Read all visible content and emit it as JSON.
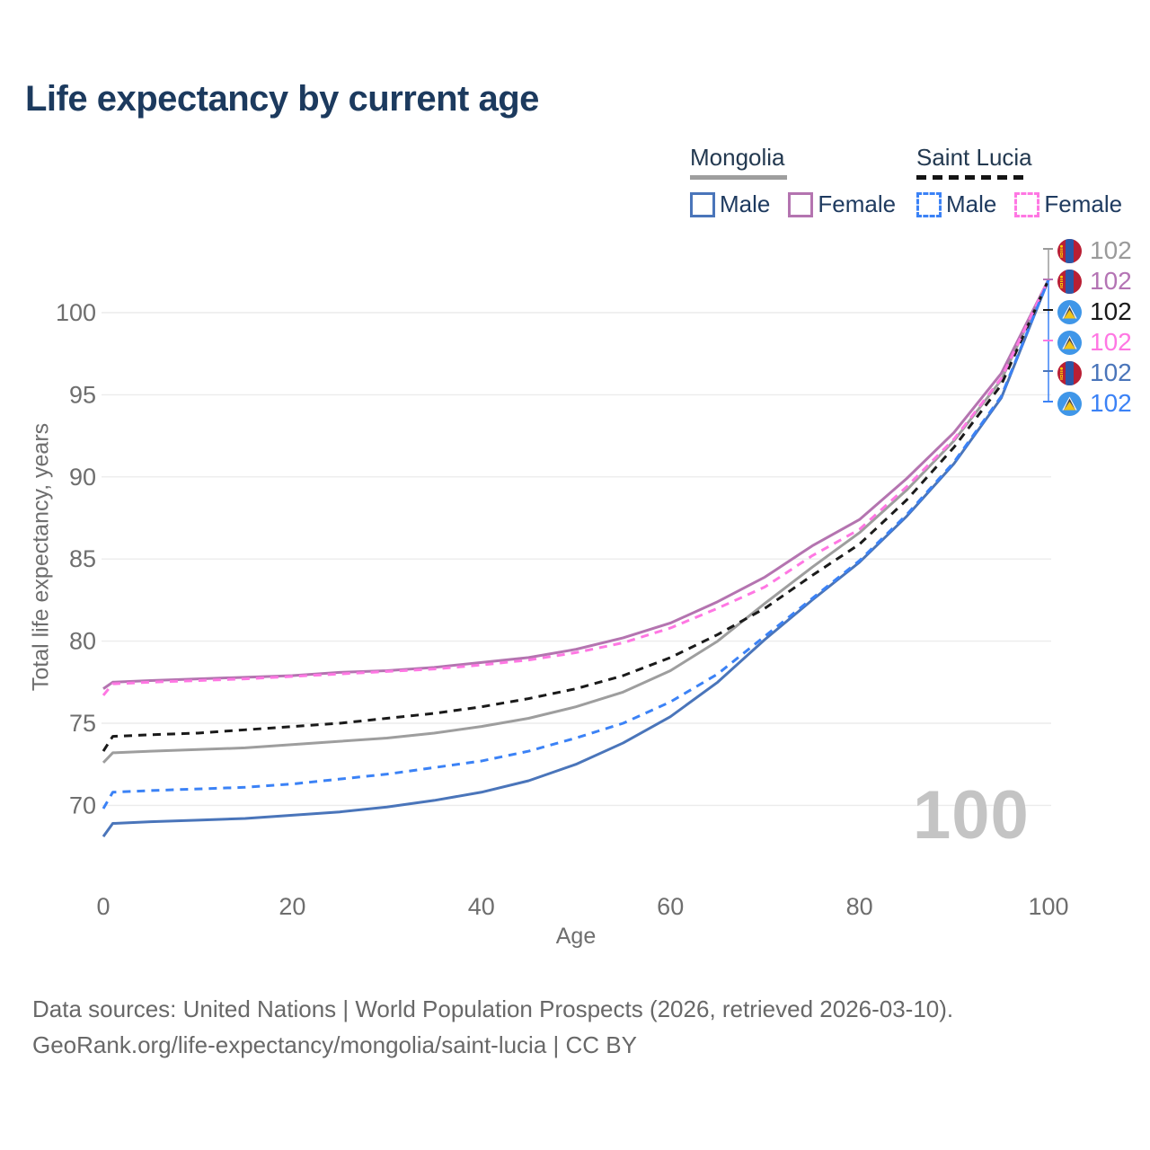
{
  "title": "Life expectancy by current age",
  "legend": {
    "groups": [
      {
        "label": "Mongolia",
        "rule_style": "solid",
        "rule_color": "#9e9e9e",
        "items": [
          {
            "label": "Male",
            "color": "#4a75ba",
            "dash": false
          },
          {
            "label": "Female",
            "color": "#b474b0",
            "dash": false
          }
        ]
      },
      {
        "label": "Saint Lucia",
        "rule_style": "dashed",
        "rule_color": "#141414",
        "items": [
          {
            "label": "Male",
            "color": "#3b82f6",
            "dash": true
          },
          {
            "label": "Female",
            "color": "#ff77e3",
            "dash": true
          }
        ]
      }
    ]
  },
  "chart_data": {
    "type": "line",
    "title": "Life expectancy by current age",
    "xlabel": "Age",
    "ylabel": "Total life expectancy, years",
    "xlim": [
      0,
      100
    ],
    "ylim": [
      66.5,
      103
    ],
    "x_ticks": [
      0,
      20,
      40,
      60,
      80,
      100
    ],
    "y_ticks": [
      70,
      75,
      80,
      85,
      90,
      95,
      100
    ],
    "grid": "horizontal",
    "legend_position": "top-right",
    "x": [
      0,
      1,
      5,
      10,
      15,
      20,
      25,
      30,
      35,
      40,
      45,
      50,
      55,
      60,
      65,
      70,
      75,
      80,
      85,
      90,
      95,
      100
    ],
    "series": [
      {
        "name": "Mongolia — Total",
        "country": "Mongolia",
        "sex": "Total",
        "color": "#9e9e9e",
        "dash": false,
        "values": [
          72.6,
          73.2,
          73.3,
          73.4,
          73.5,
          73.7,
          73.9,
          74.1,
          74.4,
          74.8,
          75.3,
          76.0,
          76.9,
          78.2,
          80.0,
          82.3,
          84.5,
          86.6,
          89.2,
          92.2,
          95.9,
          102.0
        ],
        "end_label": "102"
      },
      {
        "name": "Mongolia — Female",
        "country": "Mongolia",
        "sex": "Female",
        "color": "#b474b0",
        "dash": false,
        "values": [
          77.1,
          77.5,
          77.6,
          77.7,
          77.8,
          77.9,
          78.1,
          78.2,
          78.4,
          78.7,
          79.0,
          79.5,
          80.2,
          81.1,
          82.4,
          83.9,
          85.8,
          87.4,
          89.9,
          92.7,
          96.3,
          102.0
        ],
        "end_label": "102"
      },
      {
        "name": "Mongolia — Male",
        "country": "Mongolia",
        "sex": "Male",
        "color": "#4a75ba",
        "dash": false,
        "values": [
          68.1,
          68.9,
          69.0,
          69.1,
          69.2,
          69.4,
          69.6,
          69.9,
          70.3,
          70.8,
          71.5,
          72.5,
          73.8,
          75.4,
          77.5,
          80.1,
          82.5,
          84.8,
          87.6,
          90.8,
          94.8,
          102.0
        ],
        "end_label": "102"
      },
      {
        "name": "Saint Lucia — Total",
        "country": "Saint Lucia",
        "sex": "Total",
        "color": "#1a1a1a",
        "dash": true,
        "values": [
          73.3,
          74.2,
          74.3,
          74.4,
          74.6,
          74.8,
          75.0,
          75.3,
          75.6,
          76.0,
          76.5,
          77.1,
          77.9,
          79.0,
          80.4,
          82.0,
          84.0,
          85.9,
          88.6,
          91.8,
          95.6,
          102.0
        ],
        "end_label": "102"
      },
      {
        "name": "Saint Lucia — Female",
        "country": "Saint Lucia",
        "sex": "Female",
        "color": "#ff77e3",
        "dash": true,
        "values": [
          76.7,
          77.4,
          77.5,
          77.6,
          77.7,
          77.85,
          78.0,
          78.15,
          78.3,
          78.55,
          78.85,
          79.3,
          79.9,
          80.8,
          82.0,
          83.3,
          85.2,
          86.8,
          89.4,
          92.3,
          96.0,
          102.0
        ],
        "end_label": "102"
      },
      {
        "name": "Saint Lucia — Male",
        "country": "Saint Lucia",
        "sex": "Male",
        "color": "#3b82f6",
        "dash": true,
        "values": [
          69.8,
          70.8,
          70.9,
          71.0,
          71.1,
          71.3,
          71.6,
          71.9,
          72.3,
          72.7,
          73.3,
          74.1,
          75.0,
          76.3,
          78.0,
          80.3,
          82.6,
          84.9,
          87.7,
          90.9,
          94.9,
          102.0
        ],
        "end_label": "102"
      }
    ]
  },
  "end_labels": [
    {
      "value": "102",
      "flag": "mongolia",
      "color": "#9a9a9a"
    },
    {
      "value": "102",
      "flag": "mongolia",
      "color": "#b474b4"
    },
    {
      "value": "102",
      "flag": "saint-lucia",
      "color": "#1a1a1a"
    },
    {
      "value": "102",
      "flag": "saint-lucia",
      "color": "#ff77e3"
    },
    {
      "value": "102",
      "flag": "mongolia",
      "color": "#4a75ba"
    },
    {
      "value": "102",
      "flag": "saint-lucia",
      "color": "#3b82f6"
    }
  ],
  "watermark": "100",
  "axis": {
    "x_title": "Age",
    "y_title": "Total life expectancy, years"
  },
  "footer": {
    "line1": "Data sources: United Nations | World Population Prospects (2026, retrieved 2026-03-10).",
    "line2": "GeoRank.org/life-expectancy/mongolia/saint-lucia | CC BY"
  },
  "colors": {
    "title": "#1c3a5e",
    "grid": "#ececec",
    "tick_label": "#6e6e6e",
    "watermark": "#c4c4c4",
    "footer": "#686868"
  }
}
